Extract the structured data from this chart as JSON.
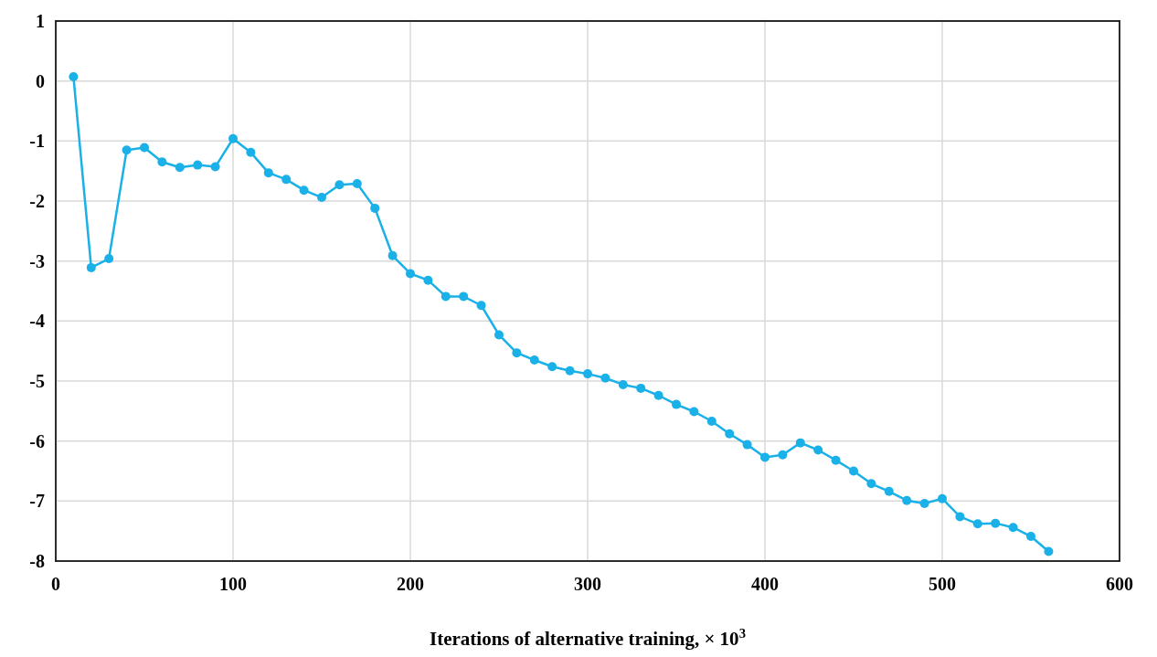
{
  "chart_data": {
    "type": "line",
    "xlabel": "Iterations of alternative training, × 10$^{3}$",
    "xlim": [
      0,
      600
    ],
    "xticks": [
      0,
      100,
      200,
      300,
      400,
      500,
      600
    ],
    "ylim": [
      -8,
      1
    ],
    "yticks": [
      -8,
      -7,
      -6,
      -5,
      -4,
      -3,
      -2,
      -1,
      0,
      1
    ],
    "grid": true,
    "marker": "circle",
    "line_style": "solid",
    "series": [
      {
        "color": "#1ab0e8",
        "x": [
          10,
          20,
          30,
          40,
          50,
          60,
          70,
          80,
          90,
          100,
          110,
          120,
          130,
          140,
          150,
          160,
          170,
          180,
          190,
          200,
          210,
          220,
          230,
          240,
          250,
          260,
          270,
          280,
          290,
          300,
          310,
          320,
          330,
          340,
          350,
          360,
          370,
          380,
          390,
          400,
          410,
          420,
          430,
          440,
          450,
          460,
          470,
          480,
          490,
          500,
          510,
          520,
          530,
          540,
          550,
          560
        ],
        "values": [
          0.07,
          -3.11,
          -2.96,
          -1.15,
          -1.11,
          -1.35,
          -1.44,
          -1.4,
          -1.43,
          -0.96,
          -1.19,
          -1.53,
          -1.64,
          -1.82,
          -1.94,
          -1.73,
          -1.71,
          -2.12,
          -2.91,
          -3.21,
          -3.32,
          -3.59,
          -3.59,
          -3.74,
          -4.23,
          -4.53,
          -4.65,
          -4.76,
          -4.83,
          -4.88,
          -4.95,
          -5.06,
          -5.12,
          -5.24,
          -5.39,
          -5.51,
          -5.67,
          -5.88,
          -6.06,
          -6.27,
          -6.23,
          -6.03,
          -6.15,
          -6.32,
          -6.5,
          -6.71,
          -6.84,
          -6.99,
          -7.04,
          -6.96,
          -7.26,
          -7.38,
          -7.37,
          -7.44,
          -7.59,
          -7.84
        ]
      }
    ]
  }
}
